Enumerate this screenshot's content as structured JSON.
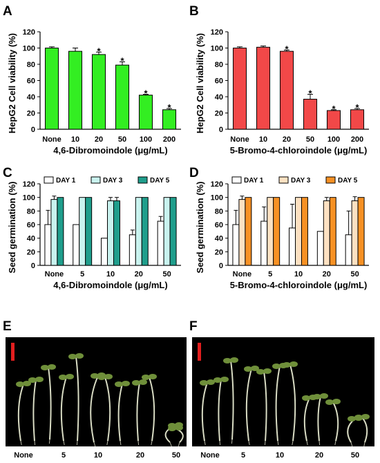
{
  "panels": [
    "A",
    "B",
    "C",
    "D",
    "E",
    "F"
  ],
  "colors": {
    "green": "#33ee22",
    "red": "#f24848",
    "day1": "#ffffff",
    "day3_teal": "#c9f3ef",
    "day5_teal": "#1f9e8c",
    "day3_orange": "#fde1c2",
    "day5_orange": "#f79124",
    "photo_bg": "#000000",
    "scale_bar": "#e21e1e",
    "sprout_leaf": "#6f8f3a",
    "sprout_stem": "#d9dcc4"
  },
  "photos": [
    {
      "letter": "E",
      "icon": "seedling-photo",
      "labels": [
        "None",
        "5",
        "10",
        "20",
        "50"
      ]
    },
    {
      "letter": "F",
      "icon": "seedling-photo",
      "labels": [
        "None",
        "5",
        "10",
        "20",
        "50"
      ]
    }
  ],
  "chart_data": [
    {
      "type": "bar",
      "panel": "A",
      "categories": [
        "None",
        "10",
        "20",
        "50",
        "100",
        "200"
      ],
      "values": [
        100,
        96,
        92,
        79,
        42,
        24
      ],
      "errors": [
        1.5,
        4,
        3,
        4,
        1,
        1.5
      ],
      "significant": [
        false,
        false,
        true,
        true,
        true,
        true
      ],
      "ylabel": "HepG2 Cell viability (%)",
      "xlabel": "4,6-Dibromoindole (μg/mL)",
      "ylim": [
        0,
        120
      ],
      "yticks": [
        0,
        20,
        40,
        60,
        80,
        100,
        120
      ],
      "color": "#33ee22",
      "grid": false
    },
    {
      "type": "bar",
      "panel": "B",
      "categories": [
        "None",
        "10",
        "20",
        "50",
        "100",
        "200"
      ],
      "values": [
        100,
        101,
        96,
        37,
        23,
        24
      ],
      "errors": [
        1.5,
        1.5,
        1.5,
        6,
        1,
        1.5
      ],
      "significant": [
        false,
        false,
        true,
        true,
        true,
        true
      ],
      "ylabel": "HepG2 Cell viability (%)",
      "xlabel": "5-Bromo-4-chloroindole (μg/mL)",
      "ylim": [
        0,
        120
      ],
      "yticks": [
        0,
        20,
        40,
        60,
        80,
        100,
        120
      ],
      "color": "#f24848",
      "grid": false
    },
    {
      "type": "bar",
      "panel": "C",
      "categories": [
        "None",
        "5",
        "10",
        "20",
        "50"
      ],
      "series": [
        {
          "name": "DAY 1",
          "values": [
            60,
            60,
            40,
            45,
            65
          ],
          "errors": [
            21,
            0,
            0,
            7,
            7
          ],
          "color": "#ffffff"
        },
        {
          "name": "DAY 3",
          "values": [
            97,
            100,
            95,
            100,
            100
          ],
          "errors": [
            5,
            0,
            5,
            0,
            0
          ],
          "color": "#c9f3ef"
        },
        {
          "name": "DAY 5",
          "values": [
            100,
            100,
            95,
            100,
            100
          ],
          "errors": [
            0,
            0,
            5,
            0,
            0
          ],
          "color": "#1f9e8c"
        }
      ],
      "ylabel": "Seed germination (%)",
      "xlabel": "4,6-Dibromoindole (μg/mL)",
      "ylim": [
        0,
        120
      ],
      "yticks": [
        0,
        20,
        40,
        60,
        80,
        100,
        120
      ],
      "legend": "top",
      "grid": false
    },
    {
      "type": "bar",
      "panel": "D",
      "categories": [
        "None",
        "5",
        "10",
        "20",
        "50"
      ],
      "series": [
        {
          "name": "DAY 1",
          "values": [
            60,
            65,
            55,
            50,
            45
          ],
          "errors": [
            21,
            21,
            35,
            0,
            35
          ],
          "color": "#ffffff"
        },
        {
          "name": "DAY 3",
          "values": [
            97,
            100,
            100,
            95,
            95
          ],
          "errors": [
            5,
            0,
            0,
            5,
            6
          ],
          "color": "#fde1c2"
        },
        {
          "name": "DAY 5",
          "values": [
            100,
            100,
            100,
            100,
            100
          ],
          "errors": [
            0,
            0,
            0,
            0,
            0
          ],
          "color": "#f79124"
        }
      ],
      "ylabel": "Seed germination (%)",
      "xlabel": "5-Bromo-4-chloroindole (μg/mL)",
      "ylim": [
        0,
        120
      ],
      "yticks": [
        0,
        20,
        40,
        60,
        80,
        100,
        120
      ],
      "legend": "top",
      "grid": false
    }
  ]
}
